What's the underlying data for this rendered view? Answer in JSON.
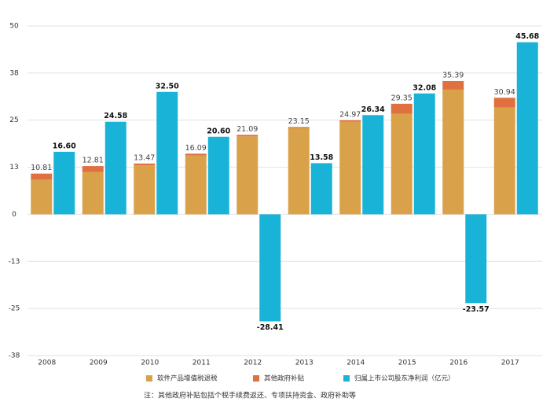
{
  "chart_data": {
    "type": "bar",
    "categories": [
      "2008",
      "2009",
      "2010",
      "2011",
      "2012",
      "2013",
      "2014",
      "2015",
      "2016",
      "2017"
    ],
    "series": [
      {
        "name": "软件产品增值税退税",
        "color": "#d9a24a",
        "stack": true,
        "values": [
          9.2,
          11.2,
          13.0,
          15.6,
          20.7,
          22.85,
          24.6,
          26.7,
          33.1,
          28.4
        ]
      },
      {
        "name": "其他政府补贴",
        "color": "#e07040",
        "stack": true,
        "values": [
          1.61,
          1.61,
          0.47,
          0.49,
          0.39,
          0.3,
          0.37,
          2.65,
          2.29,
          2.54
        ]
      },
      {
        "name": "归属上市公司股东净利润（亿元）",
        "color": "#1ab3d8",
        "values": [
          16.6,
          24.58,
          32.5,
          20.6,
          -28.41,
          13.58,
          26.34,
          32.08,
          -23.57,
          45.68
        ],
        "value_labels": [
          "16.60",
          "24.58",
          "32.50",
          "20.60",
          "-28.41",
          "13.58",
          "26.34",
          "32.08",
          "-23.57",
          "45.68"
        ]
      }
    ],
    "stack_labels": [
      "10.81",
      "12.81",
      "13.47",
      "16.09",
      "21.09",
      "23.15",
      "24.97",
      "29.35",
      "35.39",
      "30.94"
    ],
    "ylim": [
      -37.5,
      50
    ],
    "yticks": [
      {
        "value": -37.5,
        "label": "-38"
      },
      -25,
      {
        "value": -12.5,
        "label": "-13"
      },
      0,
      {
        "value": 12.5,
        "label": "13"
      },
      25,
      {
        "value": 37.5,
        "label": "38"
      },
      50
    ],
    "grid": true,
    "legend": "bottom",
    "note": "注：其他政府补贴包括个税手续费返还、专项扶持资金、政府补助等"
  }
}
